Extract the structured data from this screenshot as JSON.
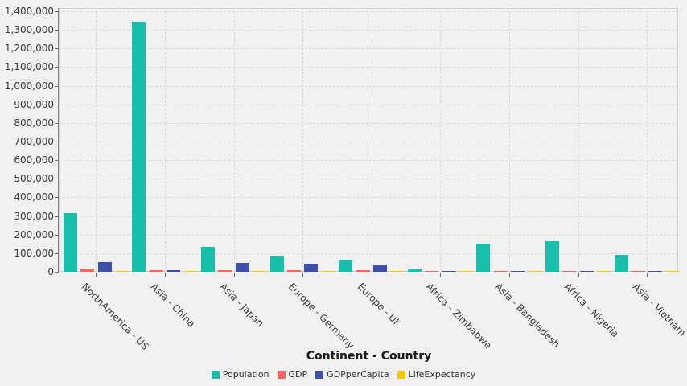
{
  "chart_data": {
    "type": "bar",
    "title": "",
    "xlabel": "Continent - Country",
    "ylabel": "",
    "ylim": [
      0,
      1400000
    ],
    "ytick_step": 100000,
    "grid": "dashed",
    "legend_position": "bottom",
    "categories": [
      "NorthAmerica - US",
      "Asia - China",
      "Asia - Japan",
      "Europe - Germany",
      "Europe - UK",
      "Africa - Zimbabwe",
      "Asia - Bangladesh",
      "Africa - Nigeria",
      "Asia - Vietnam"
    ],
    "series": [
      {
        "name": "Population",
        "color": "#17bea9",
        "values": [
          310232,
          1341335,
          127938,
          81644,
          62036,
          12571,
          148692,
          158423,
          86932
        ]
      },
      {
        "name": "GDP",
        "color": "#f5655d",
        "values": [
          14624.18,
          5745.13,
          5390.9,
          3305.9,
          2258.57,
          7.47,
          105.4,
          206.66,
          103.57
        ]
      },
      {
        "name": "GDPperCapita",
        "color": "#3d51ab",
        "values": [
          46860,
          4283,
          42820,
          40631,
          36120,
          594,
          708,
          1304,
          1191
        ]
      },
      {
        "name": "LifeExpectancy",
        "color": "#f5c60a",
        "values": [
          78.2,
          73.47,
          82.93,
          80.08,
          80.17,
          49.86,
          67.17,
          51.3,
          74.7
        ]
      }
    ]
  },
  "theme": {
    "background": "#f1f1f1",
    "grid_color": "#dadada",
    "axis_color": "#828282",
    "tick_color": "#6f6f6f",
    "label_color": "#3a3a3a",
    "title_color": "#1a1a1a"
  }
}
